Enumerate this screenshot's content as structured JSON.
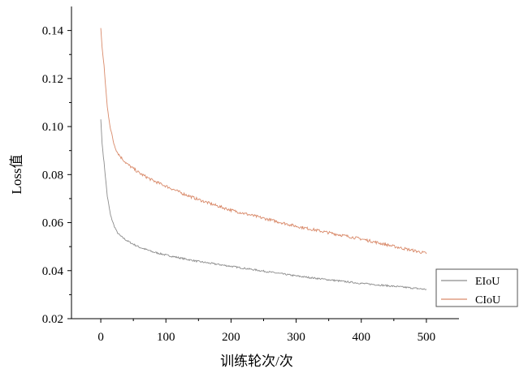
{
  "chart_data": {
    "type": "line",
    "title": "",
    "xlabel": "训练轮次/次",
    "ylabel": "Loss值",
    "xlim": [
      -45,
      550
    ],
    "ylim": [
      0.02,
      0.15
    ],
    "x_ticks": [
      0,
      100,
      200,
      300,
      400,
      500
    ],
    "y_ticks": [
      0.02,
      0.04,
      0.06,
      0.08,
      0.1,
      0.12,
      0.14
    ],
    "x_tick_labels": [
      "0",
      "100",
      "200",
      "300",
      "400",
      "500"
    ],
    "y_tick_labels": [
      "0.02",
      "0.04",
      "0.06",
      "0.08",
      "0.10",
      "0.12",
      "0.14"
    ],
    "grid": false,
    "legend": "bottom-right",
    "series": [
      {
        "name": "EIoU",
        "color": "#8c8c8c",
        "x": [
          0,
          2,
          5,
          10,
          15,
          20,
          25,
          30,
          40,
          50,
          60,
          80,
          100,
          125,
          150,
          175,
          200,
          250,
          300,
          350,
          400,
          450,
          500
        ],
        "values": [
          0.103,
          0.093,
          0.085,
          0.071,
          0.063,
          0.059,
          0.056,
          0.0545,
          0.0525,
          0.051,
          0.0497,
          0.0478,
          0.0465,
          0.0451,
          0.0438,
          0.0428,
          0.0418,
          0.0398,
          0.0378,
          0.0362,
          0.0347,
          0.0335,
          0.0322
        ]
      },
      {
        "name": "CIoU",
        "color": "#d98a6a",
        "x": [
          0,
          2,
          5,
          10,
          15,
          20,
          25,
          30,
          40,
          50,
          60,
          80,
          100,
          125,
          150,
          175,
          200,
          250,
          300,
          350,
          400,
          450,
          500
        ],
        "values": [
          0.141,
          0.133,
          0.125,
          0.108,
          0.099,
          0.093,
          0.0895,
          0.0875,
          0.0845,
          0.0825,
          0.0805,
          0.0775,
          0.0752,
          0.0722,
          0.0696,
          0.0673,
          0.0652,
          0.0618,
          0.0585,
          0.0558,
          0.0532,
          0.0501,
          0.0472
        ]
      }
    ]
  }
}
